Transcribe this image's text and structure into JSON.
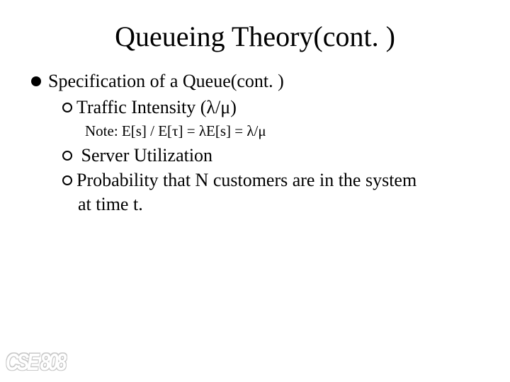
{
  "slide": {
    "title": "Queueing Theory(cont. )",
    "title_fontsize": 40,
    "body_fontsize": 26,
    "note_fontsize": 21,
    "text_color": "#000000",
    "background_color": "#ffffff",
    "items": {
      "spec": "Specification of a Queue(cont. )",
      "traffic": "Traffic Intensity (λ/μ)",
      "note": "Note: E[s] / E[τ] = λE[s] = λ/μ",
      "server_util": " Server Utilization",
      "prob_line1": "Probability that N customers are in the system",
      "prob_line2": "at time t."
    },
    "footer": "CSE 808",
    "footer_outline_color": "#c8c8c8",
    "footer_fill_color": "#ffffff"
  }
}
